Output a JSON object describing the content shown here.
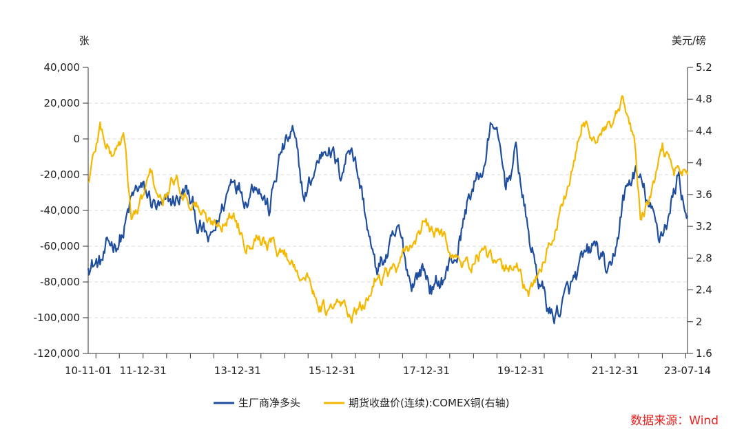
{
  "source": "数据来源：Wind",
  "chart_data": {
    "type": "line",
    "left_unit": "张",
    "right_unit": "美元/磅",
    "y_left": {
      "min": -120000,
      "max": 40000,
      "step": 20000,
      "tick_labels": [
        "40,000",
        "20,000",
        "0",
        "-20,000",
        "-40,000",
        "-60,000",
        "-80,000",
        "-100,000",
        "-120,000"
      ]
    },
    "y_right": {
      "min": 1.6,
      "max": 5.2,
      "step": 0.4,
      "tick_labels": [
        "5.2",
        "4.8",
        "4.4",
        "4",
        "3.6",
        "3.2",
        "2.8",
        "2.4",
        "2",
        "1.6"
      ]
    },
    "x_tick_labels": [
      "10-11-01",
      "11-12-31",
      "13-12-31",
      "15-12-31",
      "17-12-31",
      "19-12-31",
      "21-12-31",
      "23-07-14"
    ],
    "x_range": [
      "2010-11-01",
      "2023-07-14"
    ],
    "grid": "horizontal dashed",
    "legend_position": "bottom",
    "series": [
      {
        "name": "生厂商净多头",
        "axis": "left",
        "color": "#1f4e9e",
        "points": [
          [
            "2010-11-01",
            -68000
          ],
          [
            "2011-02-01",
            -70000
          ],
          [
            "2011-05-01",
            -60000
          ],
          [
            "2011-08-01",
            -52000
          ],
          [
            "2011-10-01",
            -36000
          ],
          [
            "2011-12-01",
            -28000
          ],
          [
            "2012-03-01",
            -35000
          ],
          [
            "2012-06-01",
            -42000
          ],
          [
            "2012-09-01",
            -35000
          ],
          [
            "2012-12-01",
            -30000
          ],
          [
            "2013-03-01",
            -48000
          ],
          [
            "2013-06-01",
            -60000
          ],
          [
            "2013-09-01",
            -40000
          ],
          [
            "2013-12-01",
            -18000
          ],
          [
            "2014-03-01",
            -30000
          ],
          [
            "2014-06-01",
            -20000
          ],
          [
            "2014-09-01",
            -40000
          ],
          [
            "2014-12-01",
            -8000
          ],
          [
            "2015-03-01",
            2000
          ],
          [
            "2015-06-01",
            -35000
          ],
          [
            "2015-09-01",
            -15000
          ],
          [
            "2015-12-01",
            0
          ],
          [
            "2016-03-01",
            -20000
          ],
          [
            "2016-06-01",
            0
          ],
          [
            "2016-09-01",
            -35000
          ],
          [
            "2016-12-01",
            -75000
          ],
          [
            "2017-03-01",
            -65000
          ],
          [
            "2017-06-01",
            -55000
          ],
          [
            "2017-09-01",
            -80000
          ],
          [
            "2017-12-01",
            -72000
          ],
          [
            "2018-03-01",
            -85000
          ],
          [
            "2018-06-01",
            -75000
          ],
          [
            "2018-09-01",
            -62000
          ],
          [
            "2018-12-01",
            -30000
          ],
          [
            "2019-03-01",
            -20000
          ],
          [
            "2019-06-01",
            10000
          ],
          [
            "2019-09-01",
            -25000
          ],
          [
            "2019-12-01",
            -8000
          ],
          [
            "2020-03-01",
            -55000
          ],
          [
            "2020-06-01",
            -82000
          ],
          [
            "2020-09-01",
            -100000
          ],
          [
            "2021-01-01",
            -88000
          ],
          [
            "2021-04-01",
            -75000
          ],
          [
            "2021-08-01",
            -60000
          ],
          [
            "2021-12-01",
            -80000
          ],
          [
            "2022-03-01",
            -35000
          ],
          [
            "2022-06-01",
            -18000
          ],
          [
            "2022-09-01",
            -35000
          ],
          [
            "2022-12-01",
            -55000
          ],
          [
            "2023-03-01",
            -40000
          ],
          [
            "2023-05-01",
            -20000
          ],
          [
            "2023-07-14",
            -43000
          ]
        ]
      },
      {
        "name": "期货收盘价(连续):COMEX铜(右轴)",
        "axis": "right",
        "color": "#f5b800",
        "points": [
          [
            "2010-11-01",
            3.75
          ],
          [
            "2011-02-01",
            4.45
          ],
          [
            "2011-05-01",
            4.1
          ],
          [
            "2011-08-01",
            4.35
          ],
          [
            "2011-10-01",
            3.3
          ],
          [
            "2011-12-01",
            3.4
          ],
          [
            "2012-03-01",
            3.85
          ],
          [
            "2012-06-01",
            3.45
          ],
          [
            "2012-09-01",
            3.8
          ],
          [
            "2012-12-01",
            3.6
          ],
          [
            "2013-03-01",
            3.45
          ],
          [
            "2013-06-01",
            3.2
          ],
          [
            "2013-09-01",
            3.3
          ],
          [
            "2013-12-01",
            3.35
          ],
          [
            "2014-03-01",
            3.05
          ],
          [
            "2014-06-01",
            3.15
          ],
          [
            "2014-09-01",
            3.0
          ],
          [
            "2014-12-01",
            2.9
          ],
          [
            "2015-03-01",
            2.75
          ],
          [
            "2015-06-01",
            2.6
          ],
          [
            "2015-09-01",
            2.35
          ],
          [
            "2015-12-01",
            2.1
          ],
          [
            "2016-03-01",
            2.2
          ],
          [
            "2016-06-01",
            2.1
          ],
          [
            "2016-09-01",
            2.15
          ],
          [
            "2016-12-01",
            2.55
          ],
          [
            "2017-03-01",
            2.65
          ],
          [
            "2017-06-01",
            2.65
          ],
          [
            "2017-09-01",
            2.95
          ],
          [
            "2017-12-01",
            3.2
          ],
          [
            "2018-03-01",
            3.1
          ],
          [
            "2018-06-01",
            3.05
          ],
          [
            "2018-09-01",
            2.75
          ],
          [
            "2018-12-01",
            2.7
          ],
          [
            "2019-03-01",
            2.9
          ],
          [
            "2019-06-01",
            2.7
          ],
          [
            "2019-09-01",
            2.6
          ],
          [
            "2019-12-01",
            2.8
          ],
          [
            "2020-03-01",
            2.25
          ],
          [
            "2020-06-01",
            2.7
          ],
          [
            "2020-09-01",
            3.05
          ],
          [
            "2020-12-01",
            3.55
          ],
          [
            "2021-03-01",
            4.05
          ],
          [
            "2021-05-01",
            4.55
          ],
          [
            "2021-08-01",
            4.3
          ],
          [
            "2021-12-01",
            4.4
          ],
          [
            "2022-03-01",
            4.7
          ],
          [
            "2022-06-01",
            4.25
          ],
          [
            "2022-07-15",
            3.3
          ],
          [
            "2022-10-01",
            3.55
          ],
          [
            "2023-01-01",
            4.15
          ],
          [
            "2023-04-01",
            3.95
          ],
          [
            "2023-07-14",
            3.85
          ]
        ]
      }
    ]
  }
}
